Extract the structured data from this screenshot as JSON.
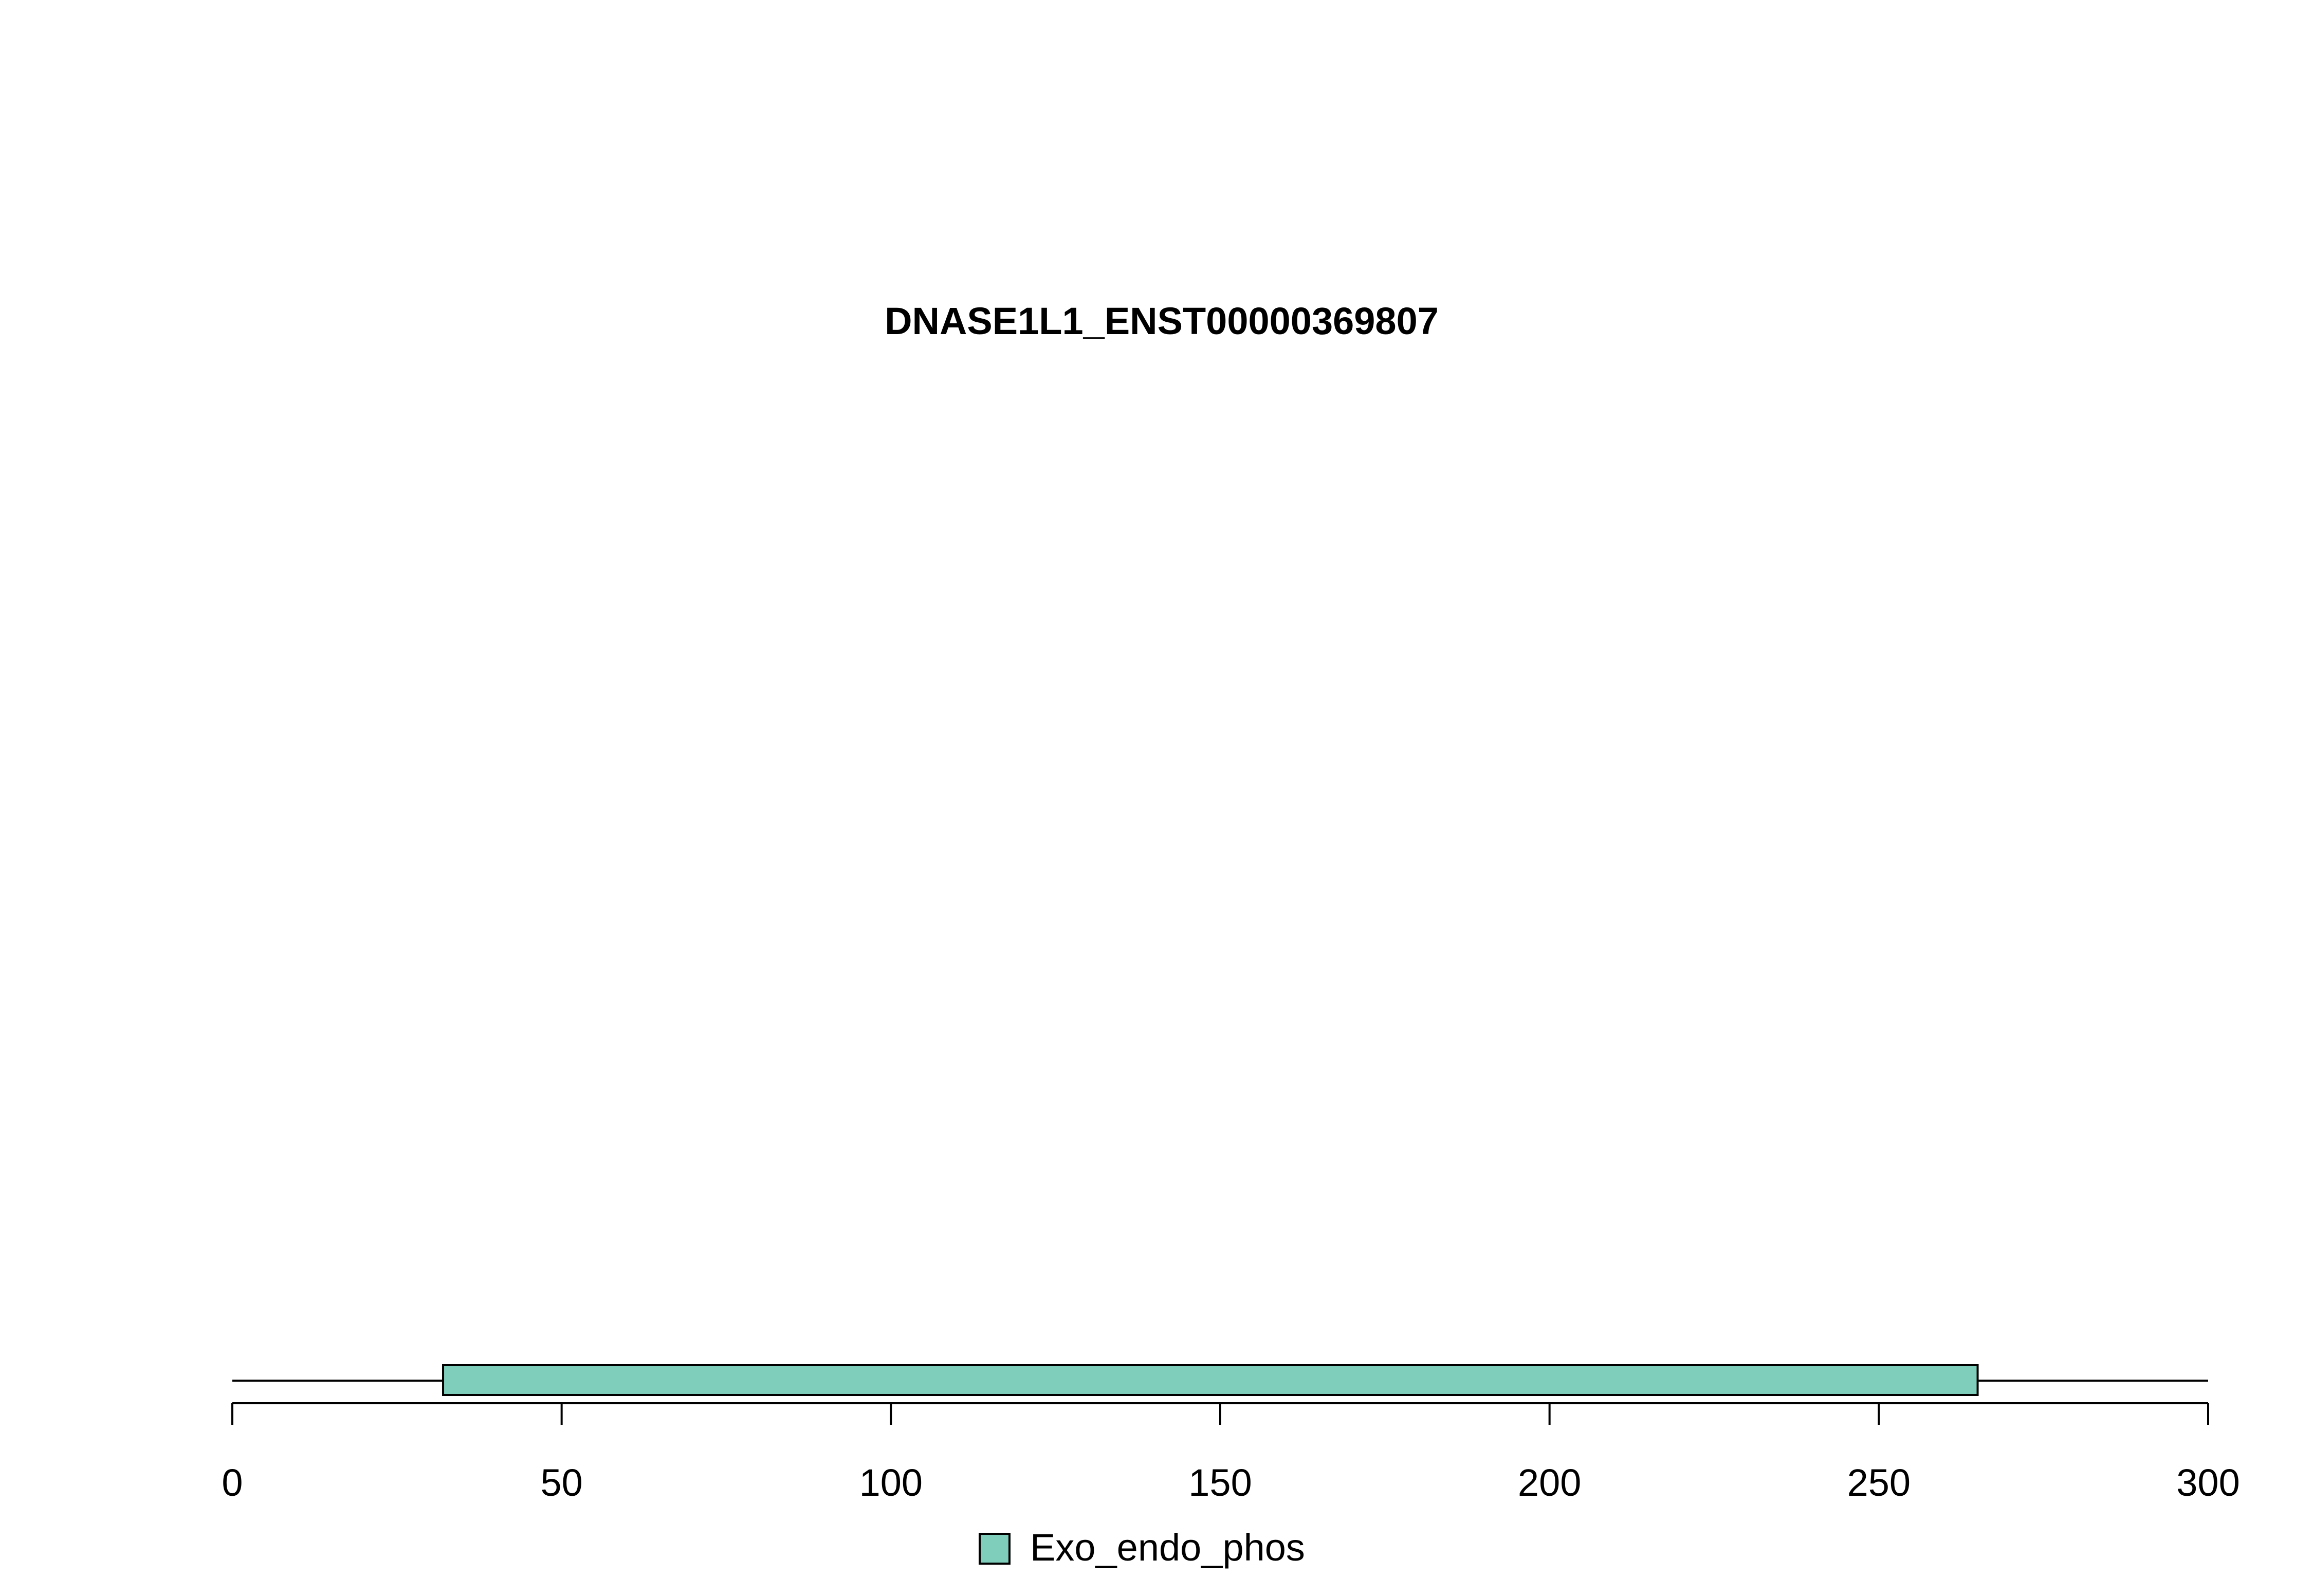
{
  "chart_data": {
    "type": "bar",
    "title": "DNASE1L1_ENST00000369807",
    "protein_length": 302,
    "xlim": [
      0,
      300
    ],
    "ticks": [
      0,
      50,
      100,
      150,
      200,
      250,
      300
    ],
    "tick_labels": [
      "0",
      "50",
      "100",
      "150",
      "200",
      "250",
      "300"
    ],
    "domains": [
      {
        "name": "Exo_endo_phos",
        "start": 32,
        "end": 265,
        "color": "#7fcdbb"
      }
    ],
    "legend": {
      "position": "bottom-center",
      "entries": [
        {
          "label": "Exo_endo_phos",
          "color": "#7fcdbb"
        }
      ]
    },
    "grid": false
  }
}
